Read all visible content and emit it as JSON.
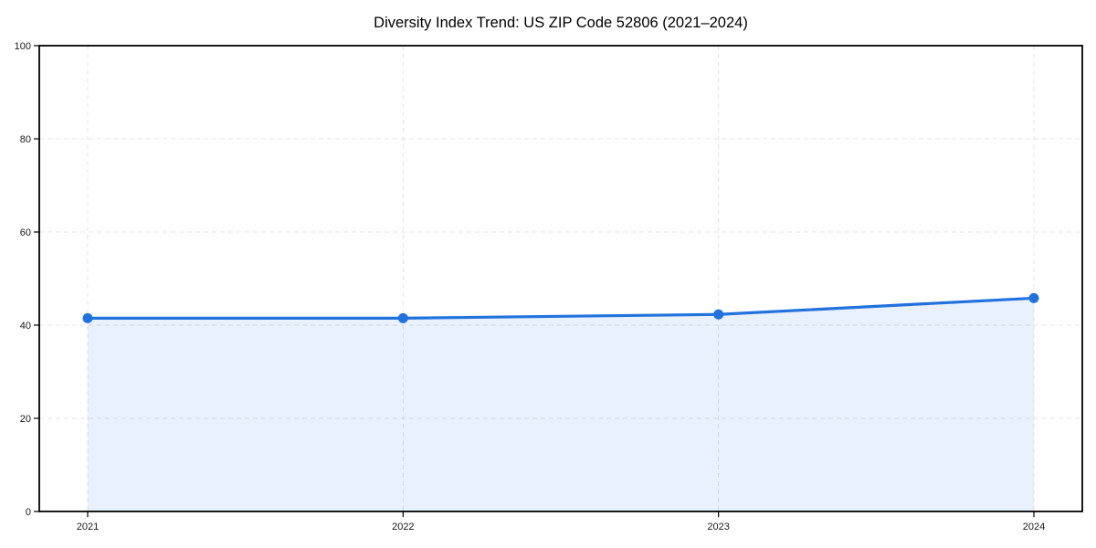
{
  "chart_data": {
    "type": "area",
    "title": "Diversity Index Trend: US ZIP Code 52806 (2021–2024)",
    "categories": [
      "2021",
      "2022",
      "2023",
      "2024"
    ],
    "series": [
      {
        "name": "Diversity Index",
        "values": [
          41.5,
          41.5,
          42.3,
          45.8
        ]
      }
    ],
    "xlabel": "",
    "ylabel": "",
    "ylim": [
      0,
      100
    ],
    "y_ticks": [
      0,
      20,
      40,
      60,
      80,
      100
    ],
    "grid": true,
    "grid_style": "dashed",
    "legend": false,
    "colors": {
      "line": "#2272dd",
      "marker": "#2272dd",
      "fill": "rgba(34, 114, 221, 0.10)",
      "grid": "#e5e5e5",
      "spine": "#000000",
      "tick": "#000000",
      "tick_label": "#1a1a1a",
      "title": "#000000",
      "background": "#ffffff"
    }
  }
}
